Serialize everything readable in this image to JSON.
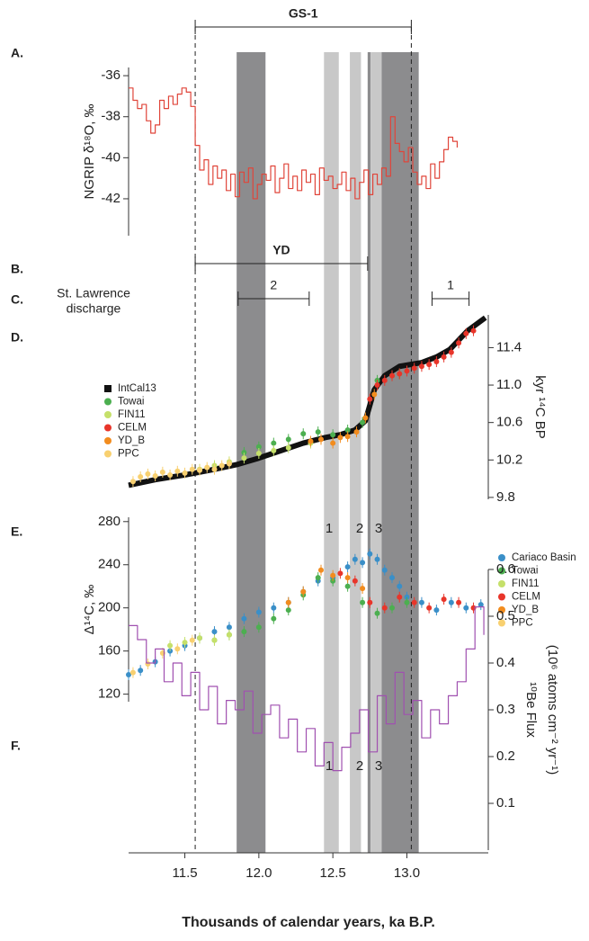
{
  "chart_data": [
    {
      "type": "line",
      "panel": "A.",
      "ylabel": "NGRIP δ¹⁸O, ‰",
      "step": true,
      "xlim": [
        11.12,
        13.55
      ],
      "ylim": [
        -43.8,
        -35.6
      ],
      "yticks": [
        -42,
        -40,
        -38,
        -36
      ],
      "series": [
        {
          "color": "#e0453a",
          "x": [
            11.12,
            11.15,
            11.18,
            11.21,
            11.24,
            11.27,
            11.3,
            11.33,
            11.36,
            11.39,
            11.42,
            11.45,
            11.48,
            11.51,
            11.54,
            11.57,
            11.6,
            11.63,
            11.66,
            11.69,
            11.72,
            11.75,
            11.78,
            11.81,
            11.84,
            11.87,
            11.9,
            11.93,
            11.96,
            11.99,
            12.02,
            12.05,
            12.08,
            12.11,
            12.14,
            12.17,
            12.2,
            12.23,
            12.26,
            12.29,
            12.32,
            12.35,
            12.38,
            12.41,
            12.44,
            12.47,
            12.5,
            12.53,
            12.56,
            12.59,
            12.62,
            12.65,
            12.68,
            12.71,
            12.74,
            12.77,
            12.8,
            12.83,
            12.86,
            12.89,
            12.92,
            12.95,
            12.98,
            13.01,
            13.04,
            13.07,
            13.1,
            13.13,
            13.16,
            13.19,
            13.22,
            13.25,
            13.28,
            13.31,
            13.34
          ],
          "values": [
            -36.6,
            -37.2,
            -37.6,
            -37.4,
            -38.2,
            -38.8,
            -38.4,
            -37.2,
            -37.6,
            -37.0,
            -37.4,
            -36.9,
            -36.6,
            -36.8,
            -37.5,
            -39.4,
            -40.6,
            -40.1,
            -41.3,
            -40.4,
            -41.0,
            -40.6,
            -41.6,
            -40.8,
            -41.9,
            -40.7,
            -41.2,
            -40.5,
            -42.0,
            -41.3,
            -40.8,
            -41.1,
            -40.4,
            -41.7,
            -41.0,
            -40.3,
            -41.5,
            -40.9,
            -41.6,
            -40.6,
            -41.2,
            -40.8,
            -41.8,
            -40.5,
            -41.1,
            -40.9,
            -41.5,
            -41.3,
            -40.7,
            -41.6,
            -41.0,
            -42.0,
            -41.2,
            -40.6,
            -41.8,
            -40.8,
            -41.3,
            -40.5,
            -40.9,
            -38.0,
            -39.3,
            -39.7,
            -40.2,
            -39.5,
            -40.7,
            -41.3,
            -40.9,
            -41.5,
            -40.3,
            -41.0,
            -40.2,
            -39.6,
            -39.0,
            -39.2,
            -39.5
          ]
        }
      ]
    },
    {
      "type": "scatter",
      "panel": "D.",
      "ylabel": "kyr ¹⁴C BP",
      "legend": "left",
      "xlim": [
        11.12,
        13.55
      ],
      "ylim": [
        9.78,
        11.75
      ],
      "yticks": [
        9.8,
        10.2,
        10.6,
        {
          "value": 11,
          "label": "11.0"
        },
        11.4
      ],
      "series": [
        {
          "name": "IntCal13",
          "color": "#111111",
          "kind": "line",
          "x": [
            11.12,
            11.3,
            11.5,
            11.7,
            11.85,
            12.0,
            12.15,
            12.3,
            12.45,
            12.55,
            12.65,
            12.72,
            12.78,
            12.85,
            12.95,
            13.1,
            13.2,
            13.29,
            13.41,
            13.53
          ],
          "values": [
            9.93,
            9.99,
            10.04,
            10.1,
            10.15,
            10.22,
            10.3,
            10.38,
            10.44,
            10.47,
            10.52,
            10.62,
            10.95,
            11.1,
            11.2,
            11.24,
            11.3,
            11.38,
            11.58,
            11.72
          ]
        },
        {
          "name": "Towai",
          "color": "#4caf50",
          "kind": "points",
          "x": [
            11.9,
            12.0,
            12.1,
            12.2,
            12.3,
            12.4,
            12.5,
            12.6,
            12.7,
            12.8,
            12.9,
            12.95
          ],
          "values": [
            10.28,
            10.34,
            10.38,
            10.42,
            10.48,
            10.5,
            10.47,
            10.52,
            10.6,
            11.05,
            11.1,
            11.12
          ]
        },
        {
          "name": "FIN11",
          "color": "#c5e06a",
          "kind": "points",
          "x": [
            11.6,
            11.7,
            11.8,
            11.9,
            12.0,
            12.1,
            12.2,
            12.35
          ],
          "values": [
            10.1,
            10.14,
            10.18,
            10.22,
            10.27,
            10.3,
            10.33,
            10.38
          ]
        },
        {
          "name": "CELM",
          "color": "#e8352a",
          "kind": "points",
          "x": [
            12.75,
            12.8,
            12.85,
            12.9,
            12.95,
            13.0,
            13.05,
            13.1,
            13.15,
            13.2,
            13.25,
            13.3,
            13.35,
            13.4,
            13.45
          ],
          "values": [
            10.85,
            11.0,
            11.05,
            11.1,
            11.12,
            11.15,
            11.18,
            11.2,
            11.22,
            11.25,
            11.3,
            11.35,
            11.45,
            11.55,
            11.58
          ]
        },
        {
          "name": "YD_B",
          "color": "#f28c1e",
          "kind": "points",
          "x": [
            12.35,
            12.42,
            12.5,
            12.55,
            12.6,
            12.66,
            12.72,
            12.78
          ],
          "values": [
            10.4,
            10.42,
            10.38,
            10.44,
            10.45,
            10.5,
            10.65,
            10.9
          ]
        },
        {
          "name": "PPC",
          "color": "#f8d070",
          "kind": "points",
          "x": [
            11.15,
            11.2,
            11.25,
            11.3,
            11.35,
            11.4,
            11.45,
            11.5,
            11.55,
            11.6,
            11.65,
            11.7,
            11.75,
            11.8
          ],
          "values": [
            9.97,
            10.02,
            10.05,
            10.03,
            10.07,
            10.04,
            10.08,
            10.06,
            10.1,
            10.09,
            10.12,
            10.1,
            10.14,
            10.16
          ]
        }
      ]
    },
    {
      "type": "scatter",
      "panel": "E.",
      "ylabel": "Δ¹⁴C, ‰",
      "legend": "right",
      "labels": [
        "1",
        "2",
        "3"
      ],
      "xlim": [
        11.12,
        13.55
      ],
      "ylim": [
        113,
        284
      ],
      "yticks": [
        120,
        160,
        200,
        240,
        280
      ],
      "series": [
        {
          "name": "Cariaco Basin",
          "color": "#3a8fc8",
          "kind": "points",
          "x": [
            11.12,
            11.2,
            11.3,
            11.4,
            11.5,
            11.6,
            11.7,
            11.8,
            11.9,
            12.0,
            12.1,
            12.2,
            12.3,
            12.4,
            12.5,
            12.6,
            12.65,
            12.7,
            12.75,
            12.8,
            12.85,
            12.9,
            12.95,
            13.0,
            13.1,
            13.2,
            13.3,
            13.4,
            13.5
          ],
          "values": [
            138,
            142,
            150,
            160,
            165,
            172,
            178,
            182,
            190,
            196,
            200,
            205,
            215,
            225,
            228,
            238,
            245,
            242,
            250,
            245,
            235,
            228,
            220,
            210,
            205,
            198,
            205,
            200,
            203
          ]
        },
        {
          "name": "Towai",
          "color": "#4caf50",
          "kind": "points",
          "x": [
            11.7,
            11.8,
            11.9,
            12.0,
            12.1,
            12.2,
            12.3,
            12.4,
            12.5,
            12.6,
            12.7,
            12.8,
            12.9,
            13.0
          ],
          "values": [
            170,
            175,
            178,
            182,
            190,
            198,
            212,
            228,
            225,
            220,
            205,
            195,
            200,
            205
          ]
        },
        {
          "name": "FIN11",
          "color": "#c5e06a",
          "kind": "points",
          "x": [
            11.4,
            11.5,
            11.6,
            11.7,
            11.8
          ],
          "values": [
            165,
            168,
            172,
            170,
            175
          ]
        },
        {
          "name": "CELM",
          "color": "#e8352a",
          "kind": "points",
          "x": [
            12.55,
            12.65,
            12.75,
            12.85,
            12.95,
            13.05,
            13.15,
            13.25,
            13.35,
            13.45
          ],
          "values": [
            232,
            225,
            205,
            200,
            210,
            205,
            200,
            208,
            205,
            200
          ]
        },
        {
          "name": "YD_B",
          "color": "#f28c1e",
          "kind": "points",
          "x": [
            12.2,
            12.3,
            12.42,
            12.5,
            12.6,
            12.7
          ],
          "values": [
            205,
            215,
            235,
            230,
            228,
            218
          ]
        },
        {
          "name": "PPC",
          "color": "#f8d070",
          "kind": "points",
          "x": [
            11.15,
            11.25,
            11.35,
            11.45,
            11.55
          ],
          "values": [
            140,
            148,
            158,
            162,
            170
          ]
        }
      ]
    },
    {
      "type": "line",
      "panel": "F.",
      "ylabel": [
        "¹⁰Be Flux",
        "(10⁶ atoms cm⁻² yr⁻¹)"
      ],
      "step": true,
      "labels": [
        "1",
        "2",
        "3"
      ],
      "xlabel": "Thousands of calendar years, ka B.P.",
      "xlim": [
        11.12,
        13.55
      ],
      "xticks": [
        11.5,
        {
          "value": 12,
          "label": "12.0"
        },
        12.5,
        {
          "value": 13,
          "label": "13.0"
        }
      ],
      "ylim": [
        0,
        0.6
      ],
      "yticks": [
        0.1,
        0.2,
        0.3,
        0.4,
        0.5,
        0.6
      ],
      "series": [
        {
          "color": "#a050b0",
          "x": [
            11.12,
            11.18,
            11.24,
            11.3,
            11.36,
            11.42,
            11.48,
            11.54,
            11.6,
            11.66,
            11.72,
            11.78,
            11.84,
            11.9,
            11.96,
            12.02,
            12.08,
            12.14,
            12.2,
            12.26,
            12.32,
            12.38,
            12.44,
            12.5,
            12.56,
            12.62,
            12.68,
            12.74,
            12.8,
            12.86,
            12.92,
            12.98,
            13.04,
            13.1,
            13.16,
            13.22,
            13.28,
            13.34,
            13.4,
            13.46,
            13.52
          ],
          "values": [
            0.48,
            0.45,
            0.4,
            0.43,
            0.36,
            0.4,
            0.33,
            0.38,
            0.3,
            0.35,
            0.27,
            0.32,
            0.3,
            0.34,
            0.25,
            0.29,
            0.31,
            0.24,
            0.28,
            0.21,
            0.26,
            0.18,
            0.23,
            0.17,
            0.22,
            0.25,
            0.3,
            0.21,
            0.33,
            0.27,
            0.38,
            0.29,
            0.32,
            0.24,
            0.3,
            0.27,
            0.33,
            0.36,
            0.43,
            0.52,
            0.46
          ]
        }
      ]
    }
  ],
  "annotations": {
    "bands": [
      {
        "start": 11.85,
        "end": 12.045,
        "color": "#8c8c8e"
      },
      {
        "start": 12.44,
        "end": 12.54,
        "color": "#c8c8c8"
      },
      {
        "start": 12.615,
        "end": 12.69,
        "color": "#c8c8c8"
      },
      {
        "start": 12.735,
        "end": 12.755,
        "color": "#8c8c8e"
      },
      {
        "start": 12.755,
        "end": 12.83,
        "color": "#c8c8c8"
      },
      {
        "start": 12.83,
        "end": 13.08,
        "color": "#8c8c8e"
      }
    ],
    "dashed_lines": [
      11.57,
      13.03
    ],
    "brackets": [
      {
        "label": "GS-1",
        "start": 11.57,
        "end": 13.03
      },
      {
        "label": "YD",
        "start": 11.57,
        "end": 12.735
      },
      {
        "label": "2",
        "start": 11.86,
        "end": 12.34
      },
      {
        "label": "1",
        "start": 13.17,
        "end": 13.42
      }
    ],
    "panels": [
      {
        "letter": "B."
      },
      {
        "letter": "C.",
        "text": [
          "St. Lawrence",
          "discharge"
        ]
      }
    ]
  }
}
